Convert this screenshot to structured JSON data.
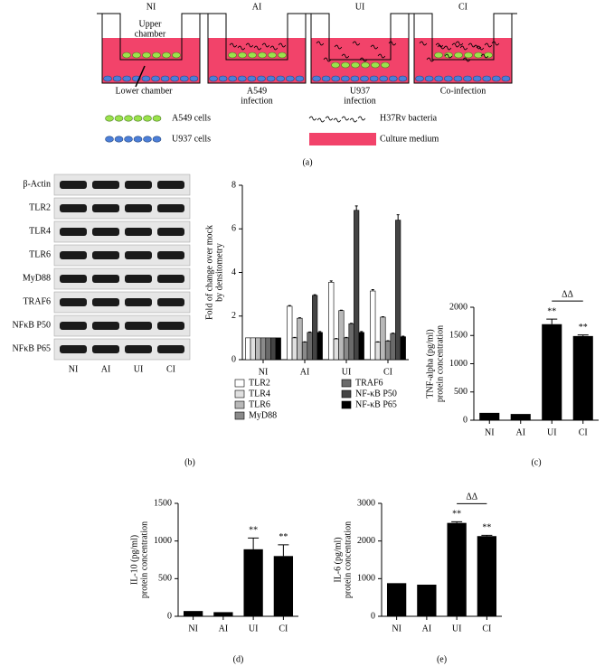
{
  "diagram": {
    "wells": [
      {
        "label": "NI",
        "caption": [
          "Lower chamber"
        ]
      },
      {
        "label": "AI",
        "caption": [
          "A549",
          "infection"
        ]
      },
      {
        "label": "UI",
        "caption": [
          "U937",
          "infection"
        ]
      },
      {
        "label": "CI",
        "caption": [
          "Co-infection"
        ]
      }
    ],
    "upper_label": [
      "Upper",
      "chamber"
    ],
    "legend": [
      "A549 cells",
      "U937 cells",
      "H37Rv bacteria",
      "Culture medium"
    ],
    "label": "(a)"
  },
  "blot": {
    "rows": [
      "β-Actin",
      "TLR2",
      "TLR4",
      "TLR6",
      "MyD88",
      "TRAF6",
      "NFκB P50",
      "NFκB P65"
    ],
    "columns": [
      "NI",
      "AI",
      "UI",
      "CI"
    ],
    "label": "(b)"
  },
  "chart_data": [
    {
      "type": "bar",
      "ylabel": [
        "Fold of change over mock",
        "by densitometry"
      ],
      "categories": [
        "NI",
        "AI",
        "UI",
        "CI"
      ],
      "series": [
        {
          "name": "TLR2",
          "color": "#ffffff",
          "values": [
            1,
            2.45,
            3.55,
            3.15
          ],
          "errors": [
            0,
            0.03,
            0.06,
            0.06
          ]
        },
        {
          "name": "TLR4",
          "color": "#e0e0e0",
          "values": [
            1,
            1.0,
            0.95,
            0.8
          ],
          "errors": [
            0,
            0.02,
            0.02,
            0.02
          ]
        },
        {
          "name": "TLR6",
          "color": "#b8b8b8",
          "values": [
            1,
            1.9,
            2.25,
            1.95
          ],
          "errors": [
            0,
            0.02,
            0.02,
            0.02
          ]
        },
        {
          "name": "MyD88",
          "color": "#8a8a8a",
          "values": [
            1,
            0.8,
            1.0,
            0.85
          ],
          "errors": [
            0,
            0.02,
            0.02,
            0.02
          ]
        },
        {
          "name": "TRAF6",
          "color": "#6a6a6a",
          "values": [
            1,
            1.25,
            1.65,
            1.2
          ],
          "errors": [
            0,
            0.02,
            0.02,
            0.02
          ]
        },
        {
          "name": "NF-κB P50",
          "color": "#444444",
          "values": [
            1,
            2.95,
            6.85,
            6.4
          ],
          "errors": [
            0,
            0.03,
            0.2,
            0.25
          ]
        },
        {
          "name": "NF-κB P65",
          "color": "#000000",
          "values": [
            1,
            1.25,
            1.25,
            1.05
          ],
          "errors": [
            0,
            0.04,
            0.04,
            0.03
          ]
        }
      ],
      "ylim": [
        0,
        8
      ],
      "yticks": [
        0,
        2,
        4,
        6,
        8
      ]
    },
    {
      "type": "bar",
      "ylabel": [
        "TNF-alpha (pg/ml)",
        "protein concentration"
      ],
      "categories": [
        "NI",
        "AI",
        "UI",
        "CI"
      ],
      "values": [
        130,
        110,
        1700,
        1490
      ],
      "errors": [
        0,
        0,
        90,
        20
      ],
      "color": "#000000",
      "significance": [
        null,
        null,
        "**",
        "**"
      ],
      "bracket": "ΔΔ",
      "ylim": [
        0,
        2000
      ],
      "yticks": [
        0,
        500,
        1000,
        1500,
        2000
      ],
      "label": "(c)"
    },
    {
      "type": "bar",
      "ylabel": [
        "IL-10 (pg/ml)",
        "protein concentration"
      ],
      "categories": [
        "NI",
        "AI",
        "UI",
        "CI"
      ],
      "values": [
        70,
        55,
        890,
        800
      ],
      "errors": [
        0,
        0,
        150,
        150
      ],
      "color": "#000000",
      "significance": [
        null,
        null,
        "**",
        "**"
      ],
      "ylim": [
        0,
        1500
      ],
      "yticks": [
        0,
        500,
        1000,
        1500
      ],
      "label": "(d)"
    },
    {
      "type": "bar",
      "ylabel": [
        "IL-6 (pg/ml)",
        "protein concentration"
      ],
      "categories": [
        "NI",
        "AI",
        "UI",
        "CI"
      ],
      "values": [
        880,
        840,
        2480,
        2130
      ],
      "errors": [
        0,
        0,
        30,
        20
      ],
      "color": "#000000",
      "significance": [
        null,
        null,
        "**",
        "**"
      ],
      "bracket": "ΔΔ",
      "ylim": [
        0,
        3000
      ],
      "yticks": [
        0,
        1000,
        2000,
        3000
      ],
      "label": "(e)"
    }
  ]
}
